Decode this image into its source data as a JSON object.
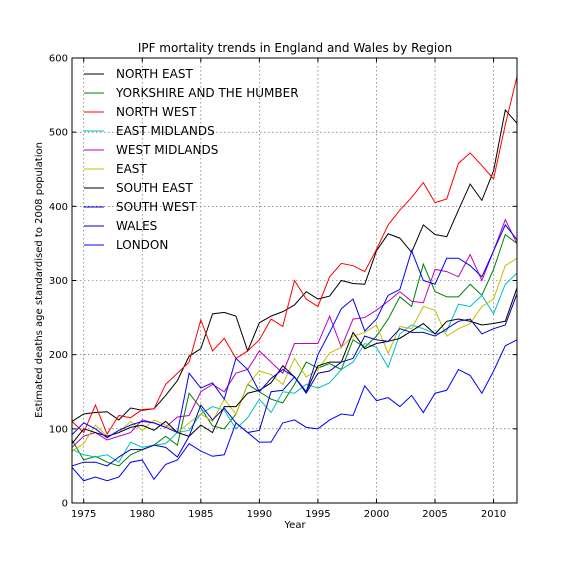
{
  "chart_data": {
    "type": "line",
    "title": "IPF mortality trends in England and Wales by Region",
    "xlabel": "Year",
    "ylabel": "Estimated deaths age standardised to 2008 population",
    "xlim": [
      1974,
      2012
    ],
    "ylim": [
      0,
      600
    ],
    "xticks": [
      "1975",
      "1980",
      "1985",
      "1990",
      "1995",
      "2000",
      "2005",
      "2010"
    ],
    "yticks": [
      "0",
      "100",
      "200",
      "300",
      "400",
      "500",
      "600"
    ],
    "grid": true,
    "legend_position": "top-left",
    "x": [
      1974,
      1975,
      1976,
      1977,
      1978,
      1979,
      1980,
      1981,
      1982,
      1983,
      1984,
      1985,
      1986,
      1987,
      1988,
      1989,
      1990,
      1991,
      1992,
      1993,
      1994,
      1995,
      1996,
      1997,
      1998,
      1999,
      2000,
      2001,
      2002,
      2003,
      2004,
      2005,
      2006,
      2007,
      2008,
      2009,
      2010,
      2011,
      2012
    ],
    "series": [
      {
        "name": "NORTH EAST",
        "color": "#000000",
        "values": [
          110,
          120,
          122,
          123,
          112,
          128,
          125,
          127,
          145,
          165,
          198,
          208,
          255,
          257,
          252,
          205,
          243,
          252,
          258,
          267,
          285,
          275,
          279,
          300,
          296,
          295,
          340,
          363,
          357,
          338,
          375,
          362,
          359,
          395,
          430,
          408,
          448,
          530,
          512
        ]
      },
      {
        "name": "YORKSHIRE AND THE HUMBER",
        "color": "#008000",
        "values": [
          85,
          58,
          63,
          55,
          50,
          65,
          72,
          78,
          90,
          78,
          148,
          128,
          104,
          100,
          120,
          160,
          150,
          140,
          135,
          160,
          190,
          182,
          188,
          180,
          220,
          210,
          225,
          248,
          278,
          265,
          322,
          285,
          278,
          278,
          295,
          280,
          315,
          362,
          350
        ]
      },
      {
        "name": "NORTH WEST",
        "color": "#ff0000",
        "values": [
          110,
          95,
          132,
          93,
          118,
          115,
          126,
          127,
          160,
          175,
          190,
          247,
          205,
          222,
          195,
          205,
          220,
          248,
          238,
          300,
          275,
          265,
          305,
          323,
          320,
          312,
          342,
          375,
          395,
          412,
          432,
          405,
          410,
          458,
          472,
          455,
          437,
          510,
          575
        ]
      },
      {
        "name": "EAST MIDLANDS",
        "color": "#00bfbf",
        "values": [
          72,
          65,
          62,
          65,
          55,
          82,
          75,
          78,
          80,
          95,
          98,
          120,
          130,
          125,
          100,
          115,
          140,
          122,
          150,
          148,
          160,
          155,
          162,
          180,
          190,
          215,
          210,
          183,
          228,
          240,
          235,
          228,
          232,
          268,
          265,
          280,
          255,
          295,
          310
        ]
      },
      {
        "name": "WEST MIDLANDS",
        "color": "#bf00bf",
        "values": [
          75,
          90,
          95,
          85,
          90,
          95,
          112,
          108,
          102,
          116,
          118,
          150,
          160,
          150,
          175,
          180,
          205,
          190,
          175,
          215,
          215,
          215,
          252,
          210,
          248,
          250,
          260,
          272,
          285,
          272,
          270,
          315,
          312,
          305,
          335,
          300,
          340,
          382,
          350
        ]
      },
      {
        "name": "EAST",
        "color": "#bfbf00",
        "values": [
          70,
          80,
          105,
          90,
          95,
          110,
          98,
          112,
          105,
          95,
          108,
          120,
          110,
          140,
          120,
          160,
          178,
          173,
          160,
          195,
          170,
          180,
          202,
          210,
          225,
          230,
          240,
          202,
          238,
          235,
          265,
          260,
          225,
          235,
          242,
          265,
          275,
          320,
          330
        ]
      },
      {
        "name": "SOUTH EAST",
        "color": "#000000",
        "values": [
          80,
          100,
          95,
          90,
          95,
          102,
          105,
          98,
          110,
          95,
          90,
          105,
          95,
          130,
          130,
          148,
          152,
          162,
          185,
          170,
          150,
          185,
          190,
          190,
          230,
          208,
          215,
          218,
          222,
          232,
          242,
          228,
          245,
          248,
          245,
          240,
          242,
          245,
          290
        ]
      },
      {
        "name": "SOUTH WEST",
        "color": "#0000ff",
        "values": [
          92,
          108,
          100,
          88,
          98,
          105,
          110,
          108,
          102,
          95,
          175,
          155,
          162,
          140,
          195,
          180,
          150,
          168,
          180,
          170,
          150,
          200,
          230,
          262,
          275,
          232,
          248,
          280,
          288,
          340,
          300,
          295,
          330,
          330,
          320,
          305,
          340,
          375,
          355
        ]
      },
      {
        "name": "WALES",
        "color": "#0000bf",
        "values": [
          50,
          55,
          55,
          50,
          62,
          72,
          72,
          78,
          75,
          62,
          90,
          132,
          112,
          128,
          108,
          95,
          98,
          150,
          152,
          170,
          148,
          175,
          178,
          190,
          195,
          225,
          220,
          218,
          235,
          230,
          230,
          225,
          235,
          245,
          248,
          228,
          235,
          240,
          282
        ]
      },
      {
        "name": "LONDON",
        "color": "#0000ff",
        "values": [
          48,
          30,
          35,
          30,
          35,
          55,
          58,
          32,
          52,
          58,
          80,
          70,
          63,
          65,
          108,
          95,
          82,
          82,
          108,
          112,
          102,
          100,
          112,
          120,
          118,
          158,
          138,
          142,
          130,
          145,
          122,
          148,
          152,
          180,
          172,
          148,
          178,
          212,
          220
        ]
      }
    ]
  }
}
